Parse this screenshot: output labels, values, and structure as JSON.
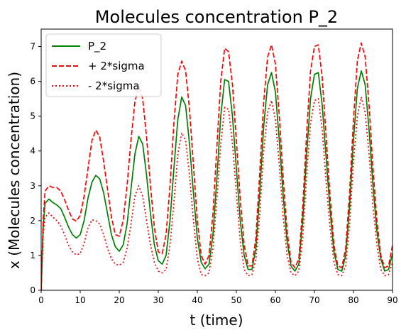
{
  "chart_data": {
    "type": "line",
    "title": "Molecules concentration P_2",
    "xlabel": "t (time)",
    "ylabel": "x (Molecules concentration)",
    "xlim": [
      0,
      90
    ],
    "ylim": [
      0,
      7.5
    ],
    "x_ticks": [
      0,
      10,
      20,
      30,
      40,
      50,
      60,
      70,
      80,
      90
    ],
    "y_ticks": [
      0,
      1,
      2,
      3,
      4,
      5,
      6,
      7
    ],
    "grid": false,
    "legend_position": "top-left",
    "series": [
      {
        "name": "P_2",
        "color": "#008000",
        "style": "solid",
        "points": [
          [
            0,
            0
          ],
          [
            0.5,
            1.8
          ],
          [
            1,
            2.5
          ],
          [
            2,
            2.62
          ],
          [
            3,
            2.52
          ],
          [
            4,
            2.45
          ],
          [
            5,
            2.35
          ],
          [
            6,
            2.1
          ],
          [
            7,
            1.82
          ],
          [
            8,
            1.6
          ],
          [
            9,
            1.5
          ],
          [
            10,
            1.6
          ],
          [
            11,
            2.0
          ],
          [
            12,
            2.65
          ],
          [
            13,
            3.1
          ],
          [
            14,
            3.3
          ],
          [
            15,
            3.2
          ],
          [
            16,
            2.8
          ],
          [
            17,
            2.2
          ],
          [
            18,
            1.6
          ],
          [
            19,
            1.25
          ],
          [
            20,
            1.12
          ],
          [
            21,
            1.3
          ],
          [
            22,
            1.9
          ],
          [
            23,
            2.9
          ],
          [
            24,
            3.9
          ],
          [
            25,
            4.42
          ],
          [
            26,
            4.2
          ],
          [
            27,
            3.3
          ],
          [
            28,
            2.2
          ],
          [
            29,
            1.3
          ],
          [
            30,
            0.85
          ],
          [
            31,
            0.75
          ],
          [
            32,
            1.0
          ],
          [
            33,
            2.0
          ],
          [
            34,
            3.5
          ],
          [
            35,
            4.9
          ],
          [
            36,
            5.55
          ],
          [
            37,
            5.3
          ],
          [
            38,
            4.2
          ],
          [
            39,
            2.8
          ],
          [
            40,
            1.5
          ],
          [
            41,
            0.8
          ],
          [
            42,
            0.62
          ],
          [
            43,
            0.75
          ],
          [
            44,
            1.6
          ],
          [
            45,
            3.2
          ],
          [
            46,
            5.0
          ],
          [
            47,
            6.05
          ],
          [
            48,
            6.0
          ],
          [
            49,
            5.0
          ],
          [
            50,
            3.5
          ],
          [
            51,
            2.0
          ],
          [
            52,
            1.0
          ],
          [
            53,
            0.6
          ],
          [
            54,
            0.6
          ],
          [
            55,
            1.2
          ],
          [
            56,
            2.8
          ],
          [
            57,
            4.7
          ],
          [
            58,
            5.9
          ],
          [
            59,
            6.25
          ],
          [
            60,
            5.7
          ],
          [
            61,
            4.3
          ],
          [
            62,
            2.7
          ],
          [
            63,
            1.4
          ],
          [
            64,
            0.7
          ],
          [
            65,
            0.55
          ],
          [
            66,
            0.75
          ],
          [
            67,
            2.0
          ],
          [
            68,
            3.9
          ],
          [
            69,
            5.5
          ],
          [
            70,
            6.2
          ],
          [
            71,
            6.25
          ],
          [
            72,
            5.3
          ],
          [
            73,
            3.8
          ],
          [
            74,
            2.3
          ],
          [
            75,
            1.1
          ],
          [
            76,
            0.6
          ],
          [
            77,
            0.55
          ],
          [
            78,
            1.0
          ],
          [
            79,
            2.4
          ],
          [
            80,
            4.3
          ],
          [
            81,
            5.8
          ],
          [
            82,
            6.3
          ],
          [
            83,
            5.9
          ],
          [
            84,
            4.6
          ],
          [
            85,
            3.0
          ],
          [
            86,
            1.7
          ],
          [
            87,
            0.9
          ],
          [
            88,
            0.55
          ],
          [
            89,
            0.6
          ],
          [
            90,
            1.05
          ]
        ]
      },
      {
        "name": "+ 2*sigma",
        "color": "#ff0000",
        "style": "dashed",
        "points": [
          [
            0,
            0
          ],
          [
            0.5,
            2.0
          ],
          [
            1,
            2.85
          ],
          [
            2,
            3.0
          ],
          [
            3,
            2.95
          ],
          [
            4,
            2.95
          ],
          [
            5,
            2.85
          ],
          [
            6,
            2.6
          ],
          [
            7,
            2.3
          ],
          [
            8,
            2.05
          ],
          [
            9,
            1.98
          ],
          [
            10,
            2.15
          ],
          [
            11,
            2.7
          ],
          [
            12,
            3.5
          ],
          [
            13,
            4.3
          ],
          [
            14,
            4.6
          ],
          [
            15,
            4.4
          ],
          [
            16,
            3.7
          ],
          [
            17,
            2.9
          ],
          [
            18,
            2.1
          ],
          [
            19,
            1.6
          ],
          [
            20,
            1.55
          ],
          [
            21,
            2.0
          ],
          [
            22,
            3.0
          ],
          [
            23,
            4.3
          ],
          [
            24,
            5.4
          ],
          [
            25,
            5.85
          ],
          [
            26,
            5.5
          ],
          [
            27,
            4.4
          ],
          [
            28,
            3.0
          ],
          [
            29,
            1.8
          ],
          [
            30,
            1.1
          ],
          [
            31,
            1.05
          ],
          [
            32,
            1.6
          ],
          [
            33,
            3.0
          ],
          [
            34,
            4.8
          ],
          [
            35,
            6.2
          ],
          [
            36,
            6.58
          ],
          [
            37,
            6.3
          ],
          [
            38,
            5.2
          ],
          [
            39,
            3.6
          ],
          [
            40,
            2.0
          ],
          [
            41,
            1.0
          ],
          [
            42,
            0.75
          ],
          [
            43,
            1.0
          ],
          [
            44,
            2.2
          ],
          [
            45,
            4.1
          ],
          [
            46,
            6.0
          ],
          [
            47,
            6.95
          ],
          [
            48,
            6.85
          ],
          [
            49,
            5.9
          ],
          [
            50,
            4.3
          ],
          [
            51,
            2.6
          ],
          [
            52,
            1.3
          ],
          [
            53,
            0.7
          ],
          [
            54,
            0.7
          ],
          [
            55,
            1.5
          ],
          [
            56,
            3.4
          ],
          [
            57,
            5.4
          ],
          [
            58,
            6.7
          ],
          [
            59,
            7.05
          ],
          [
            60,
            6.5
          ],
          [
            61,
            5.0
          ],
          [
            62,
            3.2
          ],
          [
            63,
            1.7
          ],
          [
            64,
            0.8
          ],
          [
            65,
            0.65
          ],
          [
            66,
            0.9
          ],
          [
            67,
            2.4
          ],
          [
            68,
            4.5
          ],
          [
            69,
            6.3
          ],
          [
            70,
            7.0
          ],
          [
            71,
            7.05
          ],
          [
            72,
            6.1
          ],
          [
            73,
            4.4
          ],
          [
            74,
            2.7
          ],
          [
            75,
            1.3
          ],
          [
            76,
            0.7
          ],
          [
            77,
            0.65
          ],
          [
            78,
            1.2
          ],
          [
            79,
            2.8
          ],
          [
            80,
            4.9
          ],
          [
            81,
            6.6
          ],
          [
            82,
            7.1
          ],
          [
            83,
            6.7
          ],
          [
            84,
            5.3
          ],
          [
            85,
            3.5
          ],
          [
            86,
            2.0
          ],
          [
            87,
            1.0
          ],
          [
            88,
            0.65
          ],
          [
            89,
            0.7
          ],
          [
            90,
            1.3
          ]
        ]
      },
      {
        "name": "- 2*sigma",
        "color": "#ff0000",
        "style": "dotted",
        "points": [
          [
            0,
            0
          ],
          [
            0.5,
            1.6
          ],
          [
            1,
            2.1
          ],
          [
            2,
            2.22
          ],
          [
            3,
            2.1
          ],
          [
            4,
            2.0
          ],
          [
            5,
            1.85
          ],
          [
            6,
            1.6
          ],
          [
            7,
            1.3
          ],
          [
            8,
            1.1
          ],
          [
            9,
            1.02
          ],
          [
            10,
            1.05
          ],
          [
            11,
            1.35
          ],
          [
            12,
            1.8
          ],
          [
            13,
            2.02
          ],
          [
            14,
            2.0
          ],
          [
            15,
            1.9
          ],
          [
            16,
            1.6
          ],
          [
            17,
            1.2
          ],
          [
            18,
            0.9
          ],
          [
            19,
            0.75
          ],
          [
            20,
            0.72
          ],
          [
            21,
            0.8
          ],
          [
            22,
            1.2
          ],
          [
            23,
            1.9
          ],
          [
            24,
            2.7
          ],
          [
            25,
            3.0
          ],
          [
            26,
            2.7
          ],
          [
            27,
            2.0
          ],
          [
            28,
            1.3
          ],
          [
            29,
            0.8
          ],
          [
            30,
            0.55
          ],
          [
            31,
            0.5
          ],
          [
            32,
            0.6
          ],
          [
            33,
            1.3
          ],
          [
            34,
            2.5
          ],
          [
            35,
            3.9
          ],
          [
            36,
            4.52
          ],
          [
            37,
            4.3
          ],
          [
            38,
            3.3
          ],
          [
            39,
            2.0
          ],
          [
            40,
            0.9
          ],
          [
            41,
            0.45
          ],
          [
            42,
            0.42
          ],
          [
            43,
            0.5
          ],
          [
            44,
            1.2
          ],
          [
            45,
            2.6
          ],
          [
            46,
            4.2
          ],
          [
            47,
            5.25
          ],
          [
            48,
            5.2
          ],
          [
            49,
            4.2
          ],
          [
            50,
            2.8
          ],
          [
            51,
            1.4
          ],
          [
            52,
            0.6
          ],
          [
            53,
            0.42
          ],
          [
            54,
            0.45
          ],
          [
            55,
            0.9
          ],
          [
            56,
            2.2
          ],
          [
            57,
            4.0
          ],
          [
            58,
            5.1
          ],
          [
            59,
            5.45
          ],
          [
            60,
            4.9
          ],
          [
            61,
            3.6
          ],
          [
            62,
            2.1
          ],
          [
            63,
            1.0
          ],
          [
            64,
            0.5
          ],
          [
            65,
            0.42
          ],
          [
            66,
            0.55
          ],
          [
            67,
            1.5
          ],
          [
            68,
            3.3
          ],
          [
            69,
            4.8
          ],
          [
            70,
            5.45
          ],
          [
            71,
            5.5
          ],
          [
            72,
            4.6
          ],
          [
            73,
            3.1
          ],
          [
            74,
            1.8
          ],
          [
            75,
            0.8
          ],
          [
            76,
            0.45
          ],
          [
            77,
            0.42
          ],
          [
            78,
            0.7
          ],
          [
            79,
            1.9
          ],
          [
            80,
            3.7
          ],
          [
            81,
            5.0
          ],
          [
            82,
            5.55
          ],
          [
            83,
            5.1
          ],
          [
            84,
            3.9
          ],
          [
            85,
            2.4
          ],
          [
            86,
            1.3
          ],
          [
            87,
            0.6
          ],
          [
            88,
            0.42
          ],
          [
            89,
            0.45
          ],
          [
            90,
            0.8
          ]
        ]
      }
    ]
  }
}
